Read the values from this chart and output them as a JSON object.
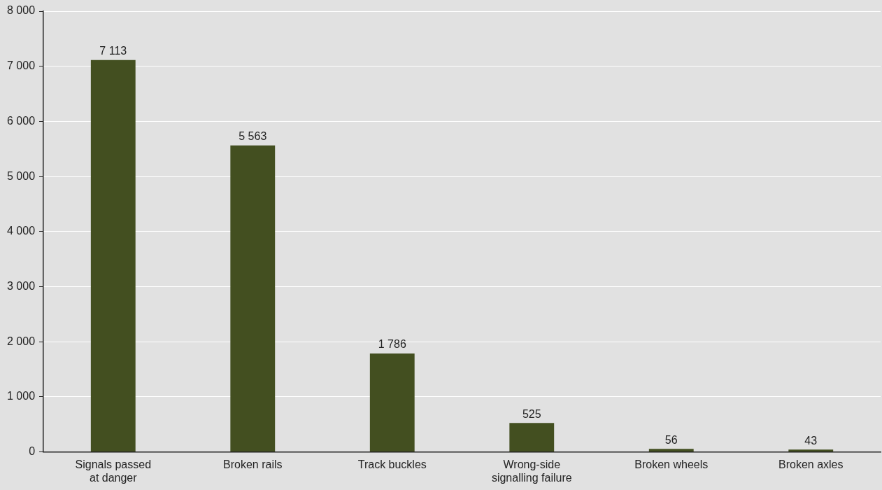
{
  "chart_data": {
    "type": "bar",
    "categories": [
      "Signals passed at danger",
      "Broken rails",
      "Track buckles",
      "Wrong-side signalling failure",
      "Broken wheels",
      "Broken axles"
    ],
    "values": [
      7113,
      5563,
      1786,
      525,
      56,
      43
    ],
    "value_labels": [
      "7 113",
      "5 563",
      "1 786",
      "525",
      "56",
      "43"
    ],
    "color": "#434f20",
    "ylim": [
      0,
      8000
    ],
    "yticks": [
      {
        "value": 0,
        "label": "0"
      },
      {
        "value": 1000,
        "label": "1 000"
      },
      {
        "value": 2000,
        "label": "2 000"
      },
      {
        "value": 3000,
        "label": "3 000"
      },
      {
        "value": 4000,
        "label": "4 000"
      },
      {
        "value": 5000,
        "label": "5 000"
      },
      {
        "value": 6000,
        "label": "6 000"
      },
      {
        "value": 7000,
        "label": "7 000"
      },
      {
        "value": 8000,
        "label": "8 000"
      }
    ],
    "grid": "y",
    "legend": false
  }
}
